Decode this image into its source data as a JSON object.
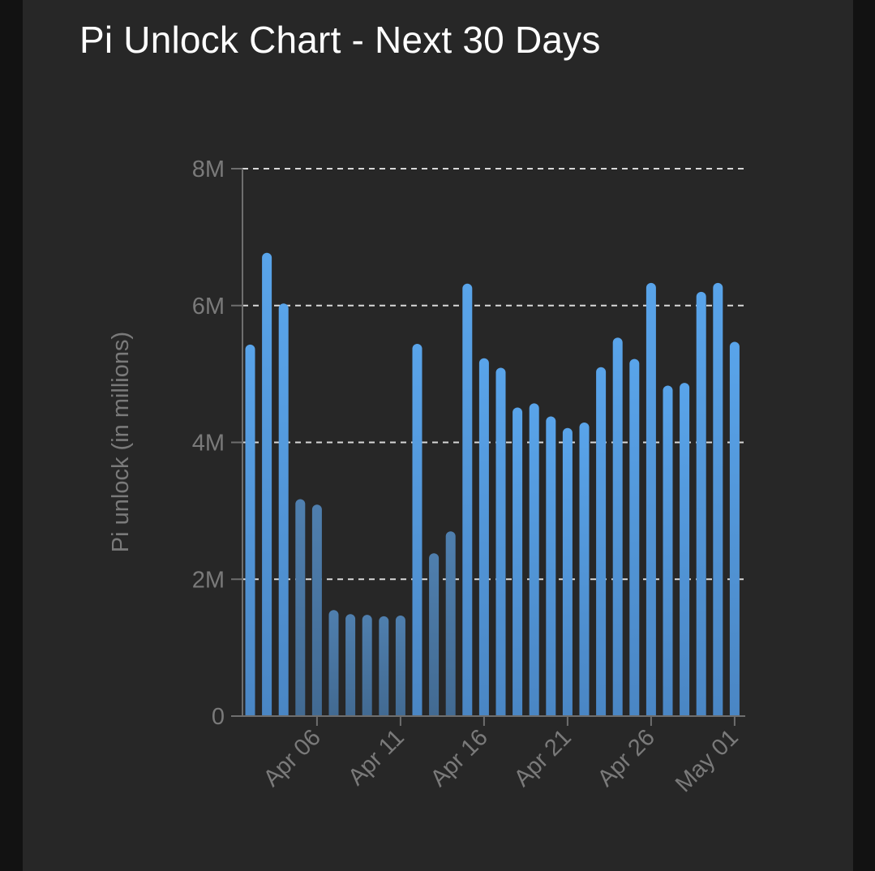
{
  "title": "Pi Unlock Chart - Next 30 Days",
  "chart_data": {
    "type": "bar",
    "title": "Pi Unlock Chart - Next 30 Days",
    "xlabel": "",
    "ylabel": "Pi unlock (in millions)",
    "ylim": [
      0,
      8000000
    ],
    "yticks": [
      0,
      2000000,
      4000000,
      6000000,
      8000000
    ],
    "ytick_labels": [
      "0",
      "2M",
      "4M",
      "6M",
      "8M"
    ],
    "grid": "horizontal dashed",
    "categories": [
      "Apr 02",
      "Apr 03",
      "Apr 04",
      "Apr 05",
      "Apr 06",
      "Apr 07",
      "Apr 08",
      "Apr 09",
      "Apr 10",
      "Apr 11",
      "Apr 12",
      "Apr 13",
      "Apr 14",
      "Apr 15",
      "Apr 16",
      "Apr 17",
      "Apr 18",
      "Apr 19",
      "Apr 20",
      "Apr 21",
      "Apr 22",
      "Apr 23",
      "Apr 24",
      "Apr 25",
      "Apr 26",
      "Apr 27",
      "Apr 28",
      "Apr 29",
      "Apr 30",
      "May 01"
    ],
    "xtick_labels": [
      "Apr 06",
      "Apr 11",
      "Apr 16",
      "Apr 21",
      "Apr 26",
      "May 01"
    ],
    "xtick_positions": [
      "Apr 06",
      "Apr 11",
      "Apr 16",
      "Apr 21",
      "Apr 26",
      "May 01"
    ],
    "values": [
      5430000,
      6770000,
      6030000,
      3170000,
      3090000,
      1550000,
      1490000,
      1480000,
      1460000,
      1470000,
      5440000,
      2380000,
      2700000,
      6320000,
      5230000,
      5090000,
      4510000,
      4570000,
      4380000,
      4210000,
      4290000,
      5100000,
      5530000,
      5220000,
      6330000,
      4830000,
      4870000,
      6200000,
      6330000,
      5470000
    ],
    "colors": {
      "bar_bright": "#59a4ea",
      "bar_dim": "#496f96",
      "grid": "#d8d8d8",
      "axis": "#6e6e6e"
    }
  }
}
